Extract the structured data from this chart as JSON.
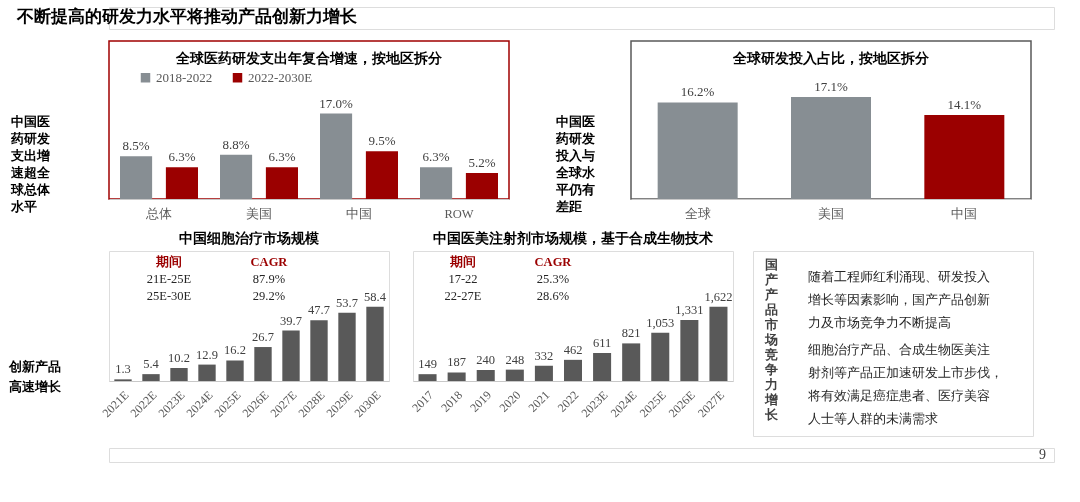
{
  "chart_data": [
    {
      "type": "other",
      "title": "不断提高的研发力水平将推动产品创新力增长",
      "annotations": [
        "9"
      ]
    },
    {
      "type": "other",
      "annotations": [
        "中国医药研发支出增速超全球总体水平"
      ]
    },
    {
      "type": "bar",
      "title": "全球医药研发支出年复合增速，按地区拆分",
      "categories": [
        "总体",
        "美国",
        "中国",
        "ROW"
      ],
      "legend": "top left",
      "series": [
        {
          "name": "2018-2022",
          "color": "#878e93",
          "values": [
            8.5,
            8.8,
            17.0,
            6.3
          ],
          "value_labels": [
            "8.5%",
            "8.8%",
            "17.0%",
            "6.3%"
          ]
        },
        {
          "name": "2022-2030E",
          "color": "#9b0000",
          "values": [
            6.3,
            6.3,
            9.5,
            5.2
          ],
          "value_labels": [
            "6.3%",
            "6.3%",
            "9.5%",
            "5.2%"
          ]
        }
      ]
    },
    {
      "type": "other",
      "annotations": [
        "中国医药研发投入与全球水平仍有差距"
      ]
    },
    {
      "type": "bar",
      "title": "全球研发投入占比，按地区拆分",
      "categories": [
        "全球",
        "美国",
        "中国"
      ],
      "values": [
        16.2,
        17.1,
        14.1
      ],
      "colors": [
        "#878e93",
        "#878e93",
        "#9b0000"
      ],
      "value_labels": [
        "16.2%",
        "17.1%",
        "14.1%"
      ]
    },
    {
      "type": "other",
      "annotations": [
        "创新产品高速增长"
      ]
    },
    {
      "type": "bar",
      "title": "中国细胞治疗市场规模",
      "categories": [
        "2021E",
        "2022E",
        "2023E",
        "2024E",
        "2025E",
        "2026E",
        "2027E",
        "2028E",
        "2029E",
        "2030E"
      ],
      "values": [
        1.3,
        5.4,
        10.2,
        12.9,
        16.2,
        26.7,
        39.7,
        47.7,
        53.7,
        58.4
      ],
      "color": "#595959",
      "data_labels": true,
      "annotations": [
        "期间",
        "CAGR",
        "21E-25E",
        "87.9%",
        "25E-30E",
        "29.2%"
      ]
    },
    {
      "type": "bar",
      "title": "中国医美注射剂市场规模，基于合成生物技术",
      "categories": [
        "2017",
        "2018",
        "2019",
        "2020",
        "2021",
        "2022",
        "2023E",
        "2024E",
        "2025E",
        "2026E",
        "2027E"
      ],
      "values": [
        149,
        187,
        240,
        248,
        332,
        462,
        611,
        821,
        1053,
        1331,
        1622
      ],
      "color": "#595959",
      "value_labels": [
        "149",
        "187",
        "240",
        "248",
        "332",
        "462",
        "611",
        "821",
        "1,053",
        "1,331",
        "1,622"
      ],
      "annotations": [
        "期间",
        "CAGR",
        "17-22",
        "25.3%",
        "22-27E",
        "28.6%"
      ]
    },
    {
      "type": "other",
      "title": "国产产品市场竞争力增长",
      "annotations": [
        "随着工程师红利涌现、研发投入增长等因素影响，国产产品创新力及市场竞争力不断提高",
        "细胞治疗产品、合成生物医美注射剂等产品正加速研发上市步伐，将有效满足癌症患者、医疗美容人士等人群的未满需求"
      ]
    }
  ]
}
